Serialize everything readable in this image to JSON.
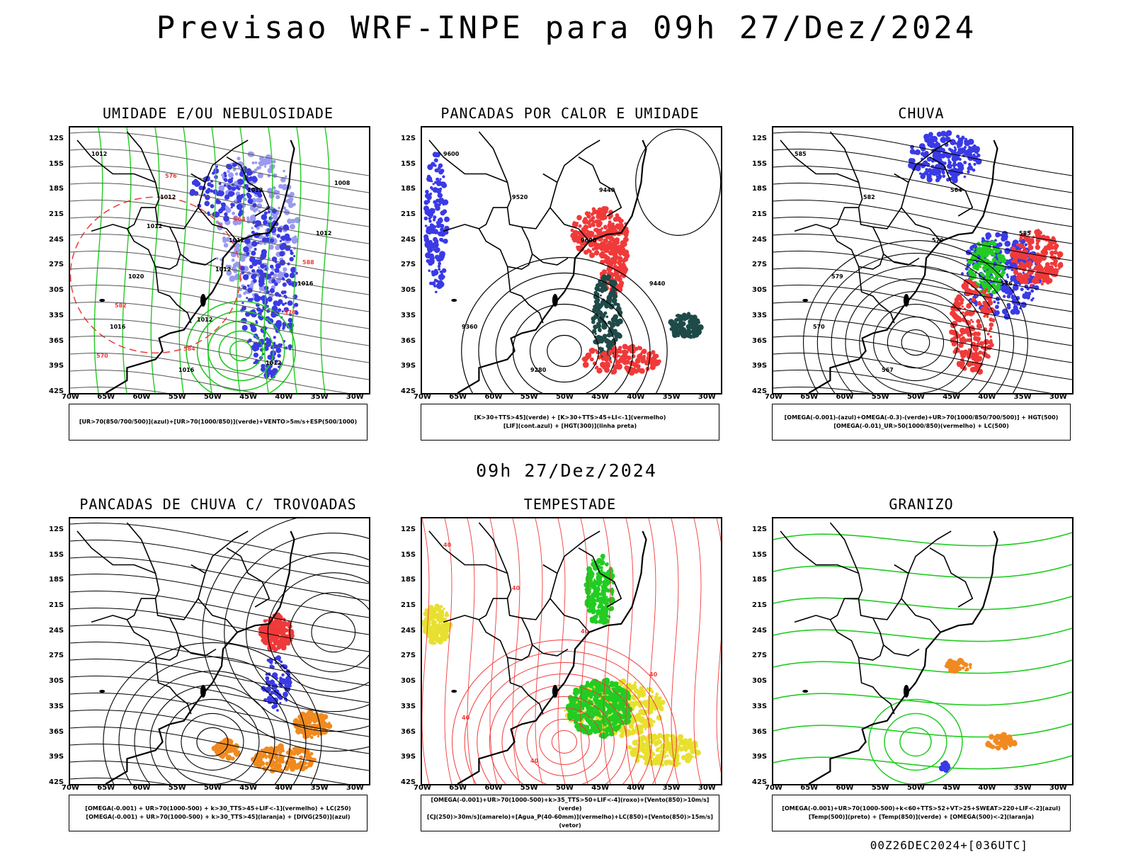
{
  "header": {
    "title": "Previsao WRF-INPE  para 09h 27/Dez/2024",
    "subtitle": "09h 27/Dez/2024",
    "footer": "00Z26DEC2024+[036UTC]"
  },
  "axes": {
    "lat_labels": [
      "12S",
      "15S",
      "18S",
      "21S",
      "24S",
      "27S",
      "30S",
      "33S",
      "36S",
      "39S",
      "42S"
    ],
    "lon_labels": [
      "70W",
      "65W",
      "60W",
      "55W",
      "50W",
      "45W",
      "40W",
      "35W",
      "30W"
    ]
  },
  "panels": [
    {
      "id": "umidade",
      "title": "UMIDADE E/OU NEBULOSIDADE",
      "legend": [
        "[UR>70(850/700/500)](azul)+[UR>70(1000/850)](verde)+VENTO>5m/s+ESP(500/1000)"
      ],
      "labels": [
        "1012",
        "1012",
        "1012",
        "1016",
        "1016",
        "1016",
        "1012",
        "1012",
        "1020",
        "1012",
        "1012",
        "1008",
        "1012",
        "1012",
        "570",
        "570",
        "576",
        "564",
        "588",
        "582",
        "584"
      ]
    },
    {
      "id": "pancadas-calor",
      "title": "PANCADAS POR CALOR E UMIDADE",
      "legend": [
        "[K>30+TTS>45](verde) + [K>30+TTS>45+LI<-1](vermelho)",
        "[LIF](cont.azul) + [HGT(300)](linha preta)"
      ],
      "labels": [
        "9600",
        "9520",
        "9600",
        "9440",
        "9360",
        "9280",
        "9440"
      ]
    },
    {
      "id": "chuva",
      "title": "CHUVA",
      "legend": [
        "[OMEGA(-0.001)-(azul)+OMEGA(-0.3)-(verde)+UR>70(1000/850/700/500)] + HGT(500)",
        "[OMEGA(-0.01)_UR>50(1000/850)(vermelho) + LC(500)"
      ],
      "labels": [
        "585",
        "582",
        "579",
        "576",
        "570",
        "567",
        "564",
        "585",
        "579"
      ]
    },
    {
      "id": "trovoadas",
      "title": "PANCADAS DE CHUVA C/ TROVOADAS",
      "legend": [
        "[OMEGA(-0.001) + UR>70(1000-500) + k>30_TTS>45+LIF<-1](vermelho) + LC(250)",
        "[OMEGA(-0.001) + UR>70(1000-500) + k>30_TTS>45](laranja) + [DIVG(250)](azul)"
      ],
      "labels": []
    },
    {
      "id": "tempestade",
      "title": "TEMPESTADE",
      "legend": [
        "[OMEGA(-0.001)+UR>70(1000-500)+k>35_TTS>50+LIF<-4](roxo)+[Vento(850)>10m/s](verde)",
        "[CJ(250)>30m/s](amarelo)+[Agua_P(40-60mm)](vermelho)+LC(850)+[Vento(850)>15m/s](vetor)"
      ],
      "labels": [
        "40",
        "40",
        "40",
        "40",
        "40",
        "40"
      ]
    },
    {
      "id": "granizo",
      "title": "GRANIZO",
      "legend": [
        "[OMEGA(-0.001)+UR>70(1000-500)+k<60+TTS>52+VT>25+SWEAT>220+LIF<-2](azul)",
        "[Temp(500)](preto) + [Temp(850)](verde) + [OMEGA(500)<-2](laranja)"
      ],
      "labels": []
    }
  ],
  "colors": {
    "blue": "#3a3ae6",
    "lightblue": "#9a9af0",
    "green": "#22cc22",
    "red": "#f03a3a",
    "darkteal": "#1e4a48",
    "yellow": "#e8e030",
    "orange": "#f08a20",
    "black": "#000000"
  }
}
